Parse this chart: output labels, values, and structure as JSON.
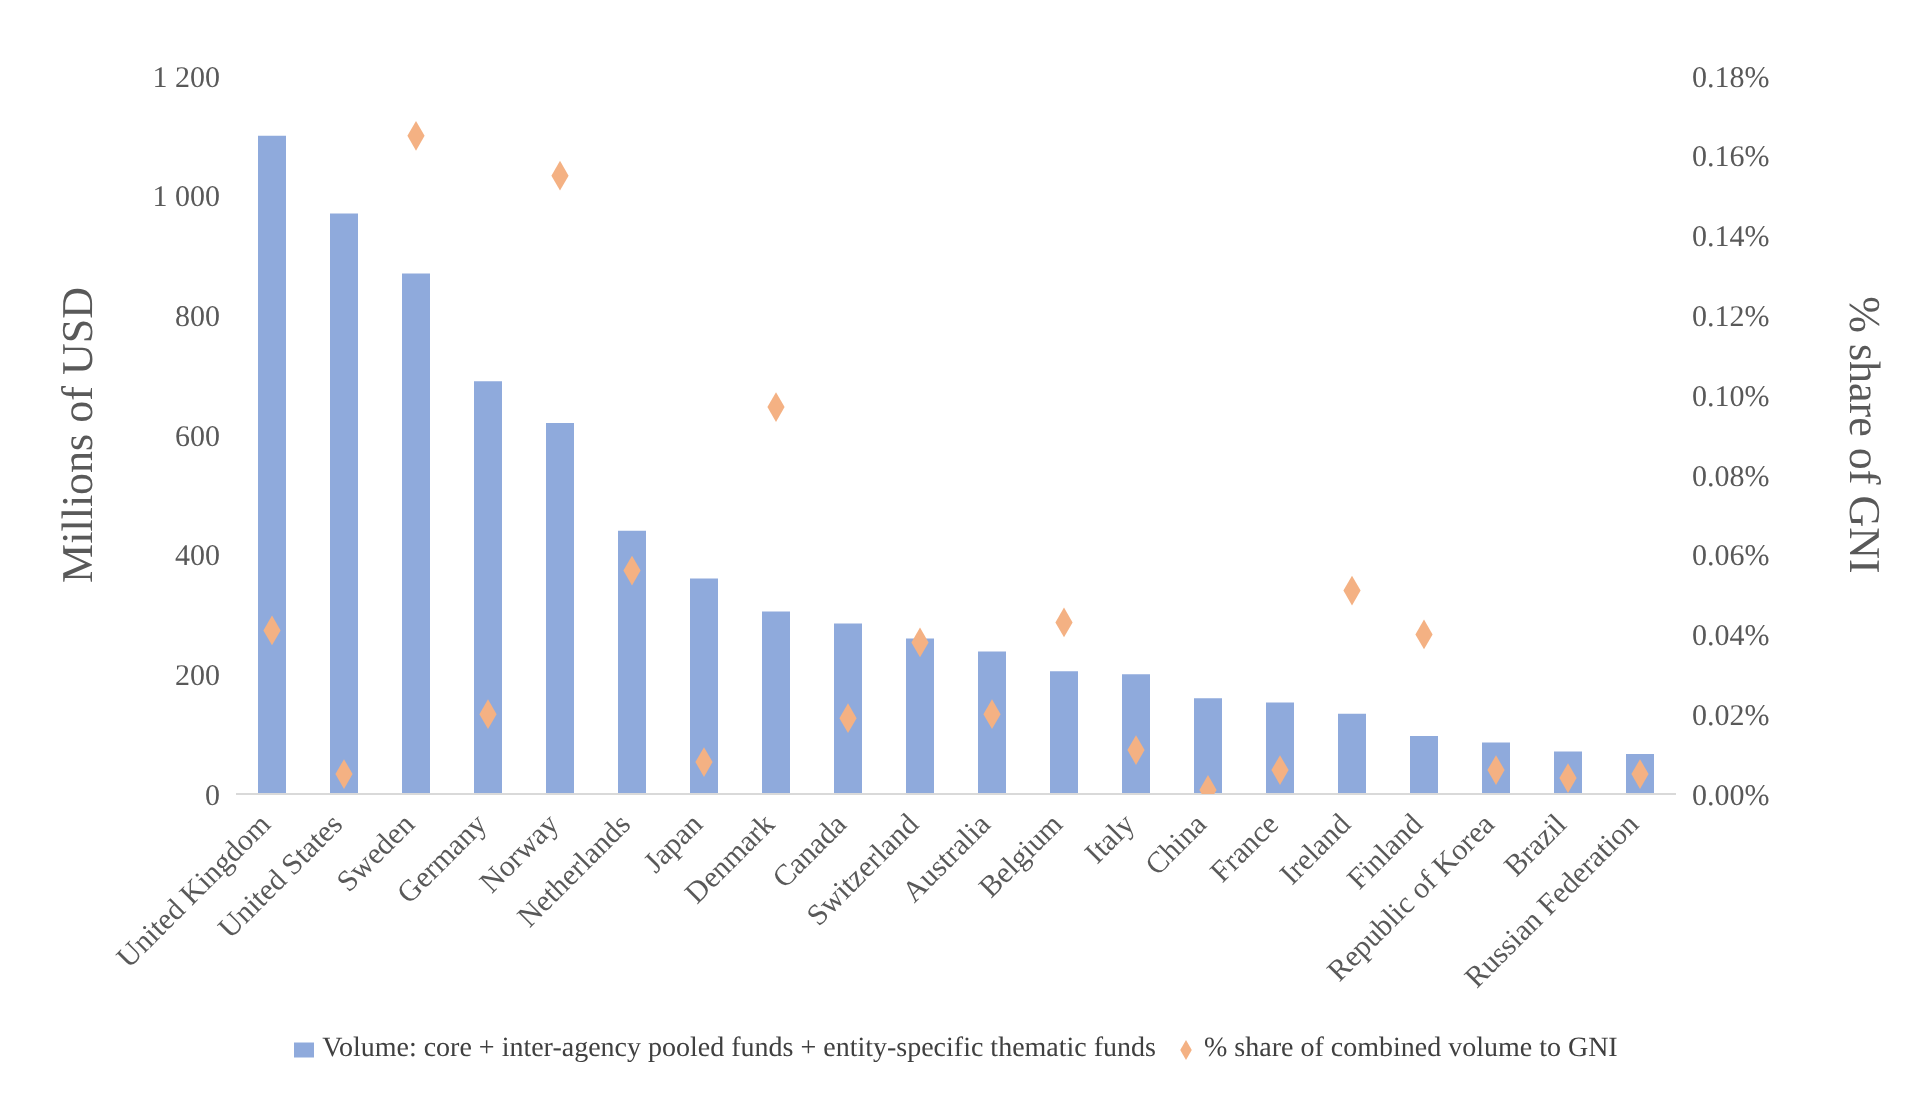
{
  "chart_data": {
    "type": "bar",
    "categories": [
      "United Kingdom",
      "United States",
      "Sweden",
      "Germany",
      "Norway",
      "Netherlands",
      "Japan",
      "Denmark",
      "Canada",
      "Switzerland",
      "Australia",
      "Belgium",
      "Italy",
      "China",
      "France",
      "Ireland",
      "Finland",
      "Republic of Korea",
      "Brazil",
      "Russian Federation"
    ],
    "series": [
      {
        "name": "Volume: core + inter-agency pooled funds + entity-specific thematic funds",
        "color": "#8faadc",
        "values": [
          1100,
          970,
          870,
          690,
          620,
          440,
          360,
          305,
          285,
          260,
          238,
          205,
          200,
          160,
          153,
          134,
          97,
          86,
          71,
          67
        ]
      },
      {
        "name": "% share of combined volume to GNI",
        "type": "scatter",
        "axis": "y2",
        "marker": "diamond",
        "color": "#f4b183",
        "values": [
          0.041,
          0.005,
          0.165,
          0.02,
          0.155,
          0.056,
          0.008,
          0.097,
          0.019,
          0.038,
          0.02,
          0.043,
          0.011,
          0.001,
          0.006,
          0.051,
          0.04,
          0.006,
          0.004,
          0.005
        ]
      }
    ],
    "ylabel": "Millions of USD",
    "y2label": "% share of GNI",
    "ylim": [
      0,
      1200
    ],
    "yticks": [
      0,
      200,
      400,
      600,
      800,
      {
        "value": 1000,
        "label": "1 000"
      },
      {
        "value": 1200,
        "label": "1 200"
      }
    ],
    "y2lim": [
      0,
      0.18
    ],
    "y2ticks": [
      {
        "value": 0,
        "label": "0.00%"
      },
      {
        "value": 0.02,
        "label": "0.02%"
      },
      {
        "value": 0.04,
        "label": "0.04%"
      },
      {
        "value": 0.06,
        "label": "0.06%"
      },
      {
        "value": 0.08,
        "label": "0.08%"
      },
      {
        "value": 0.1,
        "label": "0.10%"
      },
      {
        "value": 0.12,
        "label": "0.12%"
      },
      {
        "value": 0.14,
        "label": "0.14%"
      },
      {
        "value": 0.16,
        "label": "0.16%"
      },
      {
        "value": 0.18,
        "label": "0.18%"
      }
    ],
    "grid": false,
    "legend": "bottom"
  }
}
